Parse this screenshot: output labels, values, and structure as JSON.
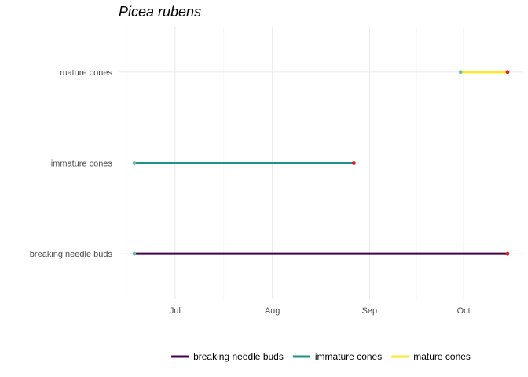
{
  "chart_data": {
    "type": "line",
    "title": "Picea rubens",
    "xlabel": "",
    "ylabel": "",
    "x_ticks": [
      "Jul",
      "Aug",
      "Sep",
      "Oct"
    ],
    "x_tick_dates": [
      "2021-07-01",
      "2021-08-01",
      "2021-09-01",
      "2021-10-01"
    ],
    "xlim": [
      "2021-06-13",
      "2021-10-20"
    ],
    "grid": true,
    "legend_position": "bottom",
    "categories": [
      "breaking needle buds",
      "immature cones",
      "mature cones"
    ],
    "series": [
      {
        "name": "breaking needle buds",
        "color": "#440154",
        "start": "2021-06-18",
        "end": "2021-10-15"
      },
      {
        "name": "immature cones",
        "color": "#21908C",
        "start": "2021-06-18",
        "end": "2021-08-27"
      },
      {
        "name": "mature cones",
        "color": "#FDE725",
        "start": "2021-09-30",
        "end": "2021-10-15"
      }
    ],
    "start_marker_color": "#66C2A5",
    "end_marker_color": "#E41A1C"
  }
}
